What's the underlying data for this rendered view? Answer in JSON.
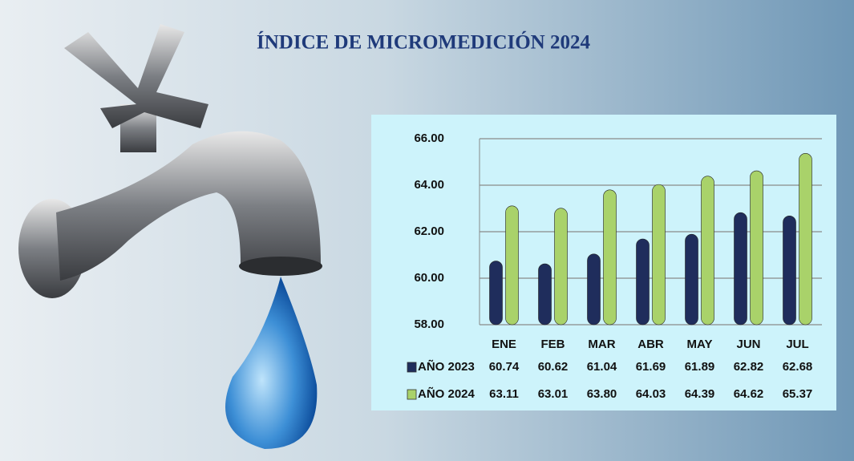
{
  "chart_data": {
    "type": "bar",
    "title": "ÍNDICE DE MICROMEDICIÓN 2024",
    "categories": [
      "ENE",
      "FEB",
      "MAR",
      "ABR",
      "MAY",
      "JUN",
      "JUL"
    ],
    "series": [
      {
        "name": "AÑO 2023",
        "color": "#1f2d5c",
        "values": [
          60.74,
          60.62,
          61.04,
          61.69,
          61.89,
          62.82,
          62.68
        ],
        "value_labels": [
          "60.74",
          "60.62",
          "61.04",
          "61.69",
          "61.89",
          "62.82",
          "62.68"
        ]
      },
      {
        "name": "AÑO 2024",
        "color": "#a9d26a",
        "values": [
          63.11,
          63.01,
          63.8,
          64.03,
          64.39,
          64.62,
          65.37
        ],
        "value_labels": [
          "63.11",
          "63.01",
          "63.80",
          "64.03",
          "64.39",
          "64.62",
          "65.37"
        ]
      }
    ],
    "ylim": [
      58,
      66
    ],
    "yticks": [
      {
        "value": 58,
        "label": "58.00"
      },
      {
        "value": 60,
        "label": "60.00"
      },
      {
        "value": 62,
        "label": "62.00"
      },
      {
        "value": 64,
        "label": "64.00"
      },
      {
        "value": 66,
        "label": "66.00"
      }
    ],
    "grid": true
  }
}
